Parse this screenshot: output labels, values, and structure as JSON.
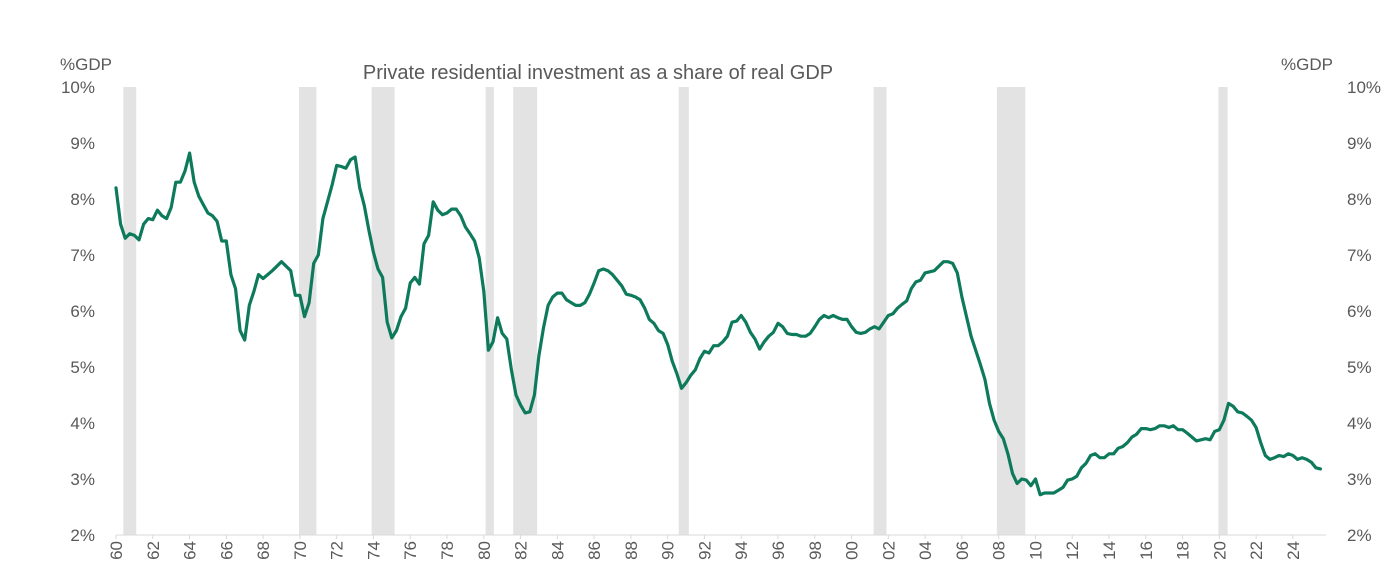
{
  "chart_data": {
    "type": "line",
    "title": "Private residential investment as a share of real GDP",
    "ylabel_left": "%GDP",
    "ylabel_right": "%GDP",
    "ylim": [
      2,
      10
    ],
    "yticks": [
      "2%",
      "3%",
      "4%",
      "5%",
      "6%",
      "7%",
      "8%",
      "9%",
      "10%"
    ],
    "xlim": [
      1960,
      2025.8
    ],
    "xticks": [
      "60",
      "62",
      "64",
      "66",
      "68",
      "70",
      "72",
      "74",
      "76",
      "78",
      "80",
      "82",
      "84",
      "86",
      "88",
      "90",
      "92",
      "94",
      "96",
      "98",
      "00",
      "02",
      "04",
      "06",
      "08",
      "10",
      "12",
      "14",
      "16",
      "18",
      "20",
      "22",
      "24"
    ],
    "grid": false,
    "legend": "none",
    "colors": {
      "line": "#0e7a5c",
      "recession": "#e3e3e3",
      "axis": "#d9d9d9",
      "text": "#595959"
    },
    "recessions": [
      {
        "start": 1960.4,
        "end": 1961.1
      },
      {
        "start": 1969.95,
        "end": 1970.9
      },
      {
        "start": 1973.9,
        "end": 1975.15
      },
      {
        "start": 1980.1,
        "end": 1980.55
      },
      {
        "start": 1981.6,
        "end": 1982.9
      },
      {
        "start": 1990.6,
        "end": 1991.15
      },
      {
        "start": 2001.2,
        "end": 2001.9
      },
      {
        "start": 2007.9,
        "end": 2009.45
      },
      {
        "start": 2019.95,
        "end": 2020.45
      }
    ],
    "series": [
      {
        "values": [
          [
            1960.0,
            8.2
          ],
          [
            1960.25,
            7.55
          ],
          [
            1960.5,
            7.3
          ],
          [
            1960.75,
            7.38
          ],
          [
            1961.0,
            7.35
          ],
          [
            1961.25,
            7.27
          ],
          [
            1961.5,
            7.55
          ],
          [
            1961.75,
            7.65
          ],
          [
            1962.0,
            7.63
          ],
          [
            1962.25,
            7.8
          ],
          [
            1962.5,
            7.7
          ],
          [
            1962.75,
            7.65
          ],
          [
            1963.0,
            7.85
          ],
          [
            1963.25,
            8.3
          ],
          [
            1963.5,
            8.3
          ],
          [
            1963.75,
            8.5
          ],
          [
            1964.0,
            8.82
          ],
          [
            1964.25,
            8.3
          ],
          [
            1964.5,
            8.05
          ],
          [
            1964.75,
            7.9
          ],
          [
            1965.0,
            7.75
          ],
          [
            1965.25,
            7.7
          ],
          [
            1965.5,
            7.6
          ],
          [
            1965.75,
            7.25
          ],
          [
            1966.0,
            7.25
          ],
          [
            1966.25,
            6.65
          ],
          [
            1966.5,
            6.4
          ],
          [
            1966.75,
            5.65
          ],
          [
            1967.0,
            5.48
          ],
          [
            1967.25,
            6.1
          ],
          [
            1967.5,
            6.35
          ],
          [
            1967.75,
            6.65
          ],
          [
            1968.0,
            6.58
          ],
          [
            1968.25,
            6.65
          ],
          [
            1968.5,
            6.72
          ],
          [
            1968.75,
            6.8
          ],
          [
            1969.0,
            6.88
          ],
          [
            1969.25,
            6.8
          ],
          [
            1969.5,
            6.72
          ],
          [
            1969.75,
            6.28
          ],
          [
            1970.0,
            6.28
          ],
          [
            1970.25,
            5.9
          ],
          [
            1970.5,
            6.15
          ],
          [
            1970.75,
            6.85
          ],
          [
            1971.0,
            7.0
          ],
          [
            1971.25,
            7.65
          ],
          [
            1971.5,
            7.95
          ],
          [
            1971.75,
            8.25
          ],
          [
            1972.0,
            8.6
          ],
          [
            1972.25,
            8.58
          ],
          [
            1972.5,
            8.55
          ],
          [
            1972.75,
            8.7
          ],
          [
            1973.0,
            8.75
          ],
          [
            1973.25,
            8.2
          ],
          [
            1973.5,
            7.88
          ],
          [
            1973.75,
            7.45
          ],
          [
            1974.0,
            7.05
          ],
          [
            1974.25,
            6.75
          ],
          [
            1974.5,
            6.6
          ],
          [
            1974.75,
            5.8
          ],
          [
            1975.0,
            5.52
          ],
          [
            1975.25,
            5.65
          ],
          [
            1975.5,
            5.9
          ],
          [
            1975.75,
            6.05
          ],
          [
            1976.0,
            6.5
          ],
          [
            1976.25,
            6.6
          ],
          [
            1976.5,
            6.48
          ],
          [
            1976.75,
            7.2
          ],
          [
            1977.0,
            7.35
          ],
          [
            1977.25,
            7.95
          ],
          [
            1977.5,
            7.8
          ],
          [
            1977.75,
            7.72
          ],
          [
            1978.0,
            7.75
          ],
          [
            1978.25,
            7.82
          ],
          [
            1978.5,
            7.82
          ],
          [
            1978.75,
            7.7
          ],
          [
            1979.0,
            7.5
          ],
          [
            1979.25,
            7.38
          ],
          [
            1979.5,
            7.25
          ],
          [
            1979.75,
            6.95
          ],
          [
            1980.0,
            6.35
          ],
          [
            1980.25,
            5.3
          ],
          [
            1980.5,
            5.45
          ],
          [
            1980.75,
            5.88
          ],
          [
            1981.0,
            5.6
          ],
          [
            1981.25,
            5.5
          ],
          [
            1981.5,
            4.95
          ],
          [
            1981.75,
            4.5
          ],
          [
            1982.0,
            4.32
          ],
          [
            1982.25,
            4.18
          ],
          [
            1982.5,
            4.2
          ],
          [
            1982.75,
            4.5
          ],
          [
            1983.0,
            5.2
          ],
          [
            1983.25,
            5.7
          ],
          [
            1983.5,
            6.1
          ],
          [
            1983.75,
            6.25
          ],
          [
            1984.0,
            6.32
          ],
          [
            1984.25,
            6.32
          ],
          [
            1984.5,
            6.2
          ],
          [
            1984.75,
            6.15
          ],
          [
            1985.0,
            6.1
          ],
          [
            1985.25,
            6.1
          ],
          [
            1985.5,
            6.15
          ],
          [
            1985.75,
            6.3
          ],
          [
            1986.0,
            6.5
          ],
          [
            1986.25,
            6.72
          ],
          [
            1986.5,
            6.75
          ],
          [
            1986.75,
            6.72
          ],
          [
            1987.0,
            6.65
          ],
          [
            1987.25,
            6.55
          ],
          [
            1987.5,
            6.45
          ],
          [
            1987.75,
            6.3
          ],
          [
            1988.0,
            6.28
          ],
          [
            1988.25,
            6.25
          ],
          [
            1988.5,
            6.2
          ],
          [
            1988.75,
            6.05
          ],
          [
            1989.0,
            5.85
          ],
          [
            1989.25,
            5.78
          ],
          [
            1989.5,
            5.65
          ],
          [
            1989.75,
            5.6
          ],
          [
            1990.0,
            5.4
          ],
          [
            1990.25,
            5.1
          ],
          [
            1990.5,
            4.88
          ],
          [
            1990.75,
            4.62
          ],
          [
            1991.0,
            4.72
          ],
          [
            1991.25,
            4.85
          ],
          [
            1991.5,
            4.95
          ],
          [
            1991.75,
            5.15
          ],
          [
            1992.0,
            5.28
          ],
          [
            1992.25,
            5.25
          ],
          [
            1992.5,
            5.38
          ],
          [
            1992.75,
            5.38
          ],
          [
            1993.0,
            5.45
          ],
          [
            1993.25,
            5.55
          ],
          [
            1993.5,
            5.8
          ],
          [
            1993.75,
            5.82
          ],
          [
            1994.0,
            5.92
          ],
          [
            1994.25,
            5.8
          ],
          [
            1994.5,
            5.62
          ],
          [
            1994.75,
            5.5
          ],
          [
            1995.0,
            5.32
          ],
          [
            1995.25,
            5.45
          ],
          [
            1995.5,
            5.55
          ],
          [
            1995.75,
            5.62
          ],
          [
            1996.0,
            5.78
          ],
          [
            1996.25,
            5.72
          ],
          [
            1996.5,
            5.6
          ],
          [
            1996.75,
            5.58
          ],
          [
            1997.0,
            5.58
          ],
          [
            1997.25,
            5.55
          ],
          [
            1997.5,
            5.55
          ],
          [
            1997.75,
            5.6
          ],
          [
            1998.0,
            5.72
          ],
          [
            1998.25,
            5.85
          ],
          [
            1998.5,
            5.92
          ],
          [
            1998.75,
            5.88
          ],
          [
            1999.0,
            5.92
          ],
          [
            1999.25,
            5.88
          ],
          [
            1999.5,
            5.85
          ],
          [
            1999.75,
            5.85
          ],
          [
            2000.0,
            5.72
          ],
          [
            2000.25,
            5.62
          ],
          [
            2000.5,
            5.6
          ],
          [
            2000.75,
            5.62
          ],
          [
            2001.0,
            5.68
          ],
          [
            2001.25,
            5.72
          ],
          [
            2001.5,
            5.68
          ],
          [
            2001.75,
            5.8
          ],
          [
            2002.0,
            5.92
          ],
          [
            2002.25,
            5.95
          ],
          [
            2002.5,
            6.05
          ],
          [
            2002.75,
            6.12
          ],
          [
            2003.0,
            6.18
          ],
          [
            2003.25,
            6.4
          ],
          [
            2003.5,
            6.52
          ],
          [
            2003.75,
            6.55
          ],
          [
            2004.0,
            6.68
          ],
          [
            2004.25,
            6.7
          ],
          [
            2004.5,
            6.72
          ],
          [
            2004.75,
            6.8
          ],
          [
            2005.0,
            6.88
          ],
          [
            2005.25,
            6.88
          ],
          [
            2005.5,
            6.85
          ],
          [
            2005.75,
            6.68
          ],
          [
            2006.0,
            6.25
          ],
          [
            2006.25,
            5.9
          ],
          [
            2006.5,
            5.55
          ],
          [
            2006.75,
            5.3
          ],
          [
            2007.0,
            5.05
          ],
          [
            2007.25,
            4.78
          ],
          [
            2007.5,
            4.35
          ],
          [
            2007.75,
            4.05
          ],
          [
            2008.0,
            3.85
          ],
          [
            2008.25,
            3.72
          ],
          [
            2008.5,
            3.45
          ],
          [
            2008.75,
            3.1
          ],
          [
            2009.0,
            2.92
          ],
          [
            2009.25,
            3.0
          ],
          [
            2009.5,
            2.98
          ],
          [
            2009.75,
            2.88
          ],
          [
            2010.0,
            3.0
          ],
          [
            2010.25,
            2.72
          ],
          [
            2010.5,
            2.75
          ],
          [
            2010.75,
            2.75
          ],
          [
            2011.0,
            2.75
          ],
          [
            2011.25,
            2.8
          ],
          [
            2011.5,
            2.85
          ],
          [
            2011.75,
            2.98
          ],
          [
            2012.0,
            3.0
          ],
          [
            2012.25,
            3.05
          ],
          [
            2012.5,
            3.2
          ],
          [
            2012.75,
            3.28
          ],
          [
            2013.0,
            3.42
          ],
          [
            2013.25,
            3.45
          ],
          [
            2013.5,
            3.38
          ],
          [
            2013.75,
            3.38
          ],
          [
            2014.0,
            3.45
          ],
          [
            2014.25,
            3.45
          ],
          [
            2014.5,
            3.55
          ],
          [
            2014.75,
            3.58
          ],
          [
            2015.0,
            3.65
          ],
          [
            2015.25,
            3.75
          ],
          [
            2015.5,
            3.8
          ],
          [
            2015.75,
            3.9
          ],
          [
            2016.0,
            3.9
          ],
          [
            2016.25,
            3.88
          ],
          [
            2016.5,
            3.9
          ],
          [
            2016.75,
            3.95
          ],
          [
            2017.0,
            3.95
          ],
          [
            2017.25,
            3.92
          ],
          [
            2017.5,
            3.95
          ],
          [
            2017.75,
            3.88
          ],
          [
            2018.0,
            3.88
          ],
          [
            2018.25,
            3.82
          ],
          [
            2018.5,
            3.75
          ],
          [
            2018.75,
            3.68
          ],
          [
            2019.0,
            3.7
          ],
          [
            2019.25,
            3.72
          ],
          [
            2019.5,
            3.7
          ],
          [
            2019.75,
            3.85
          ],
          [
            2020.0,
            3.88
          ],
          [
            2020.25,
            4.05
          ],
          [
            2020.5,
            4.35
          ],
          [
            2020.75,
            4.3
          ],
          [
            2021.0,
            4.2
          ],
          [
            2021.25,
            4.18
          ],
          [
            2021.5,
            4.12
          ],
          [
            2021.75,
            4.05
          ],
          [
            2022.0,
            3.92
          ],
          [
            2022.25,
            3.65
          ],
          [
            2022.5,
            3.42
          ],
          [
            2022.75,
            3.35
          ],
          [
            2023.0,
            3.38
          ],
          [
            2023.25,
            3.42
          ],
          [
            2023.5,
            3.4
          ],
          [
            2023.75,
            3.45
          ],
          [
            2024.0,
            3.42
          ],
          [
            2024.25,
            3.35
          ],
          [
            2024.5,
            3.38
          ],
          [
            2024.75,
            3.35
          ],
          [
            2025.0,
            3.3
          ],
          [
            2025.25,
            3.2
          ],
          [
            2025.5,
            3.18
          ]
        ]
      }
    ]
  }
}
